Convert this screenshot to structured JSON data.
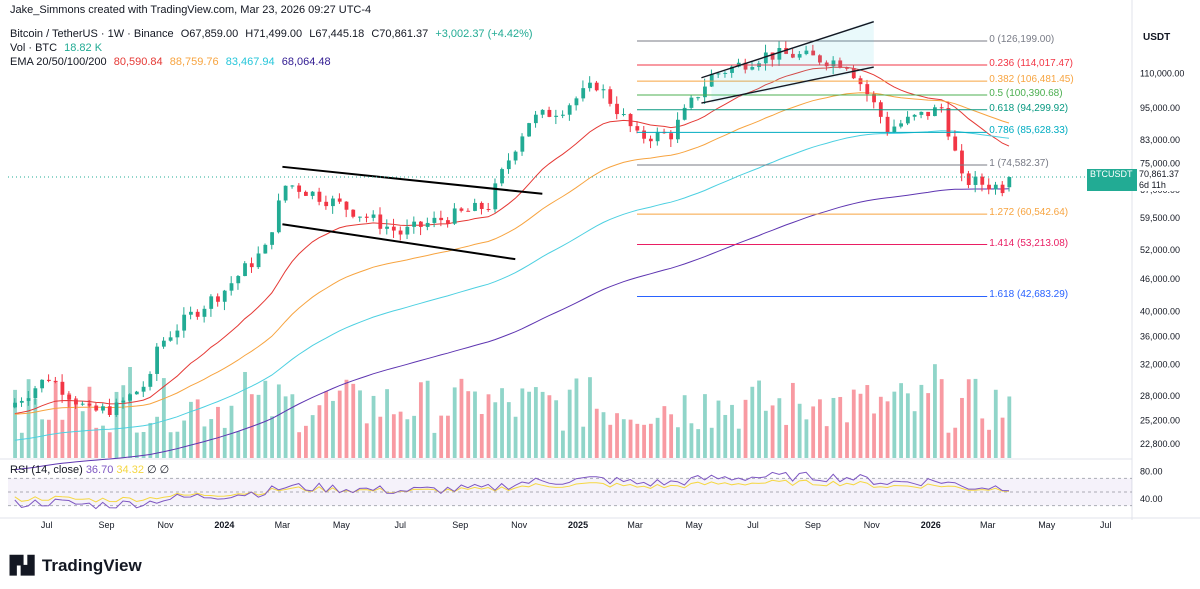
{
  "header": {
    "creator": "Jake_Simmons created with TradingView.com, Mar 23, 2026 09:27 UTC-4",
    "symbol": "Bitcoin / TetherUS · 1W · Binance",
    "open": "O67,859.00",
    "high": "H71,499.00",
    "low": "L67,445.18",
    "close": "C70,861.37",
    "change": "+3,002.37 (+4.42%)",
    "vol_label": "Vol · BTC",
    "vol_value": "18.82 K",
    "ema_label": "EMA 20/50/100/200",
    "ema20": "80,590.84",
    "ema50": "88,759.76",
    "ema100": "83,467.94",
    "ema200": "68,064.48",
    "rsi_label": "RSI (14, close)",
    "rsi_value": "36.70",
    "rsi_ma": "34.32",
    "rsi_na1": "∅",
    "rsi_na2": "∅"
  },
  "currency": "USDT",
  "price_tag": {
    "symbol": "BTCUSDT",
    "price": "70,861.37",
    "countdown": "6d 11h"
  },
  "footer": {
    "brand": "TradingView",
    "logo": "TV-logo-icon"
  },
  "colors": {
    "up": "#22ab94",
    "down": "#f23645",
    "ema20": "#e53935",
    "ema50": "#f7a440",
    "ema100": "#4dd0e1",
    "ema200": "#5e35b1",
    "rsi": "#7e57c2",
    "rsi_ma": "#f5d742"
  },
  "chart_data": {
    "type": "candlestick",
    "title": "Bitcoin / TetherUS · 1W · Binance",
    "y_scale": "log",
    "y_ticks": [
      "110,000.00",
      "95,000.00",
      "83,000.00",
      "75,000.00",
      "67,000.00",
      "59,500.00",
      "52,000.00",
      "46,000.00",
      "40,000.00",
      "36,000.00",
      "32,000.00",
      "28,000.00",
      "25,200.00",
      "22,800.00"
    ],
    "y_tick_values": [
      110000,
      95000,
      83000,
      75000,
      67000,
      59500,
      52000,
      46000,
      40000,
      36000,
      32000,
      28000,
      25200,
      22800
    ],
    "x_ticks": [
      "Jul",
      "Sep",
      "Nov",
      "2024",
      "Mar",
      "May",
      "Jul",
      "Sep",
      "Nov",
      "2025",
      "Mar",
      "May",
      "Jul",
      "Sep",
      "Nov",
      "2026",
      "Mar",
      "May",
      "Jul"
    ],
    "x_tick_dates": [
      "2023-07-01",
      "2023-09-01",
      "2023-11-01",
      "2024-01-01",
      "2024-03-01",
      "2024-05-01",
      "2024-07-01",
      "2024-09-01",
      "2024-11-01",
      "2025-01-01",
      "2025-03-01",
      "2025-05-01",
      "2025-07-01",
      "2025-09-01",
      "2025-11-01",
      "2026-01-01",
      "2026-03-01",
      "2026-05-01",
      "2026-07-01"
    ],
    "fib_levels": [
      {
        "ratio": "0",
        "price": 126199.0,
        "label": "0 (126,199.00)",
        "color": "#787b86"
      },
      {
        "ratio": "0.236",
        "price": 114017.47,
        "label": "0.236 (114,017.47)",
        "color": "#f23645"
      },
      {
        "ratio": "0.382",
        "price": 106481.45,
        "label": "0.382 (106,481.45)",
        "color": "#f7a440"
      },
      {
        "ratio": "0.5",
        "price": 100390.68,
        "label": "0.5 (100,390.68)",
        "color": "#4caf50"
      },
      {
        "ratio": "0.618",
        "price": 94299.92,
        "label": "0.618 (94,299.92)",
        "color": "#089981"
      },
      {
        "ratio": "0.786",
        "price": 85628.33,
        "label": "0.786 (85,628.33)",
        "color": "#00acc1"
      },
      {
        "ratio": "1",
        "price": 74582.37,
        "label": "1 (74,582.37)",
        "color": "#787b86"
      },
      {
        "ratio": "1.272",
        "price": 60542.64,
        "label": "1.272 (60,542.64)",
        "color": "#f7a440"
      },
      {
        "ratio": "1.414",
        "price": 53213.08,
        "label": "1.414 (53,213.08)",
        "color": "#e91e63"
      },
      {
        "ratio": "1.618",
        "price": 42683.29,
        "label": "1.618 (42,683.29)",
        "color": "#2962ff"
      }
    ],
    "weekly_closes": [
      {
        "date": "2023-05-29",
        "close": 27200
      },
      {
        "date": "2023-07-03",
        "close": 30300
      },
      {
        "date": "2023-08-14",
        "close": 26100
      },
      {
        "date": "2023-09-11",
        "close": 26600
      },
      {
        "date": "2023-10-16",
        "close": 29900
      },
      {
        "date": "2023-10-23",
        "close": 34500
      },
      {
        "date": "2023-11-27",
        "close": 39400
      },
      {
        "date": "2024-01-01",
        "close": 43900
      },
      {
        "date": "2024-02-12",
        "close": 52100
      },
      {
        "date": "2024-03-04",
        "close": 68300
      },
      {
        "date": "2024-03-11",
        "close": 68400
      },
      {
        "date": "2024-04-29",
        "close": 63000
      },
      {
        "date": "2024-07-01",
        "close": 55800
      },
      {
        "date": "2024-08-05",
        "close": 58700
      },
      {
        "date": "2024-09-30",
        "close": 62800
      },
      {
        "date": "2024-11-11",
        "close": 90000
      },
      {
        "date": "2024-12-16",
        "close": 95000
      },
      {
        "date": "2025-01-20",
        "close": 105000
      },
      {
        "date": "2025-03-03",
        "close": 84000
      },
      {
        "date": "2025-04-07",
        "close": 85000
      },
      {
        "date": "2025-05-19",
        "close": 109000
      },
      {
        "date": "2025-07-14",
        "close": 119000
      },
      {
        "date": "2025-08-11",
        "close": 119000
      },
      {
        "date": "2025-10-06",
        "close": 115000
      },
      {
        "date": "2025-11-17",
        "close": 87000
      },
      {
        "date": "2026-01-12",
        "close": 95000
      },
      {
        "date": "2026-02-02",
        "close": 70000
      },
      {
        "date": "2026-03-16",
        "close": 67859
      },
      {
        "date": "2026-03-23",
        "close": 70861.37
      }
    ],
    "rsi_ticks": [
      "80.00",
      "40.00"
    ],
    "rsi_tick_values": [
      80,
      40
    ],
    "series": [
      {
        "name": "EMA 20",
        "value": 80590.84
      },
      {
        "name": "EMA 50",
        "value": 88759.76
      },
      {
        "name": "EMA 100",
        "value": 83467.94
      },
      {
        "name": "EMA 200",
        "value": 68064.48
      }
    ],
    "last_price": 70861.37
  }
}
